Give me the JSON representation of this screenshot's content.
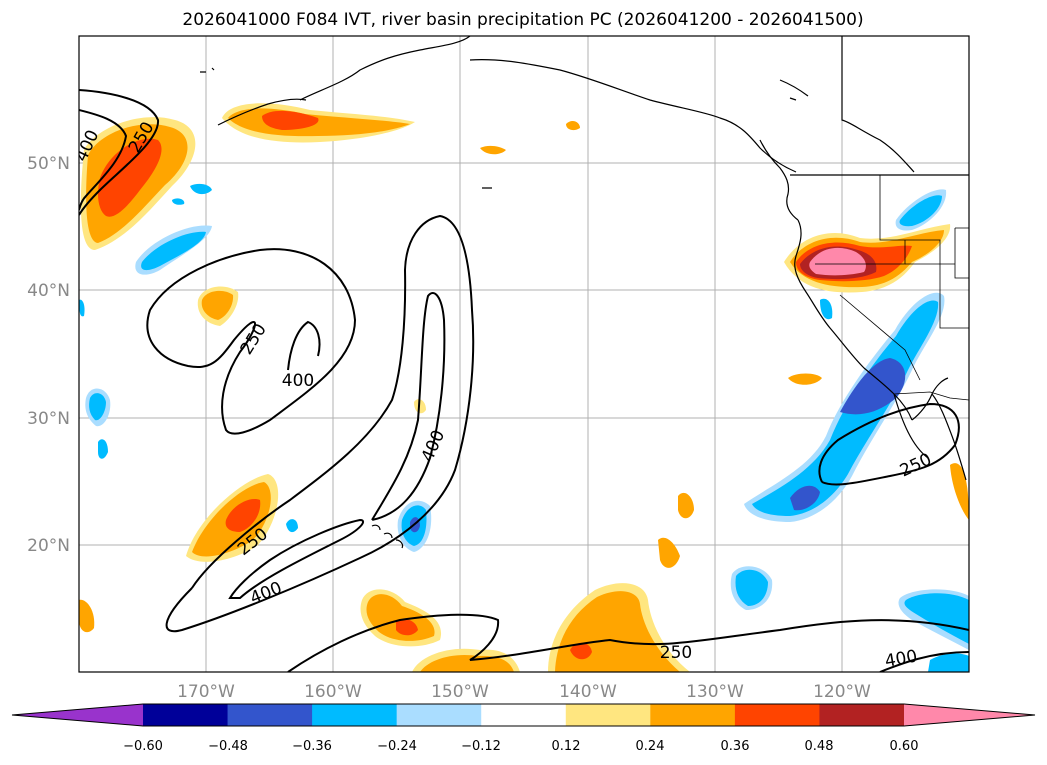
{
  "title": "2026041000 F084 IVT, river basin precipitation PC (2026041200 - 2026041500)",
  "map": {
    "lon_labels": [
      "170°W",
      "160°W",
      "150°W",
      "140°W",
      "130°W",
      "120°W"
    ],
    "lat_labels": [
      "50°N",
      "40°N",
      "30°N",
      "20°N"
    ],
    "contour_labels": [
      "400",
      "250",
      "250",
      "400",
      "400",
      "250",
      "400",
      "250",
      "250",
      "400"
    ]
  },
  "colorbar": {
    "tick_labels": [
      "−0.60",
      "−0.48",
      "−0.36",
      "−0.24",
      "−0.12",
      "0.12",
      "0.24",
      "0.36",
      "0.48",
      "0.60"
    ],
    "colors": [
      "#9933cc",
      "#000099",
      "#3355cc",
      "#00bbff",
      "#aaddff",
      "#ffffff",
      "#ffe680",
      "#ffa500",
      "#ff4400",
      "#b22222",
      "#ff88aa"
    ]
  },
  "colors": {
    "land_outline": "#000000",
    "grid": "#b0b0b0",
    "contour": "#000000"
  }
}
